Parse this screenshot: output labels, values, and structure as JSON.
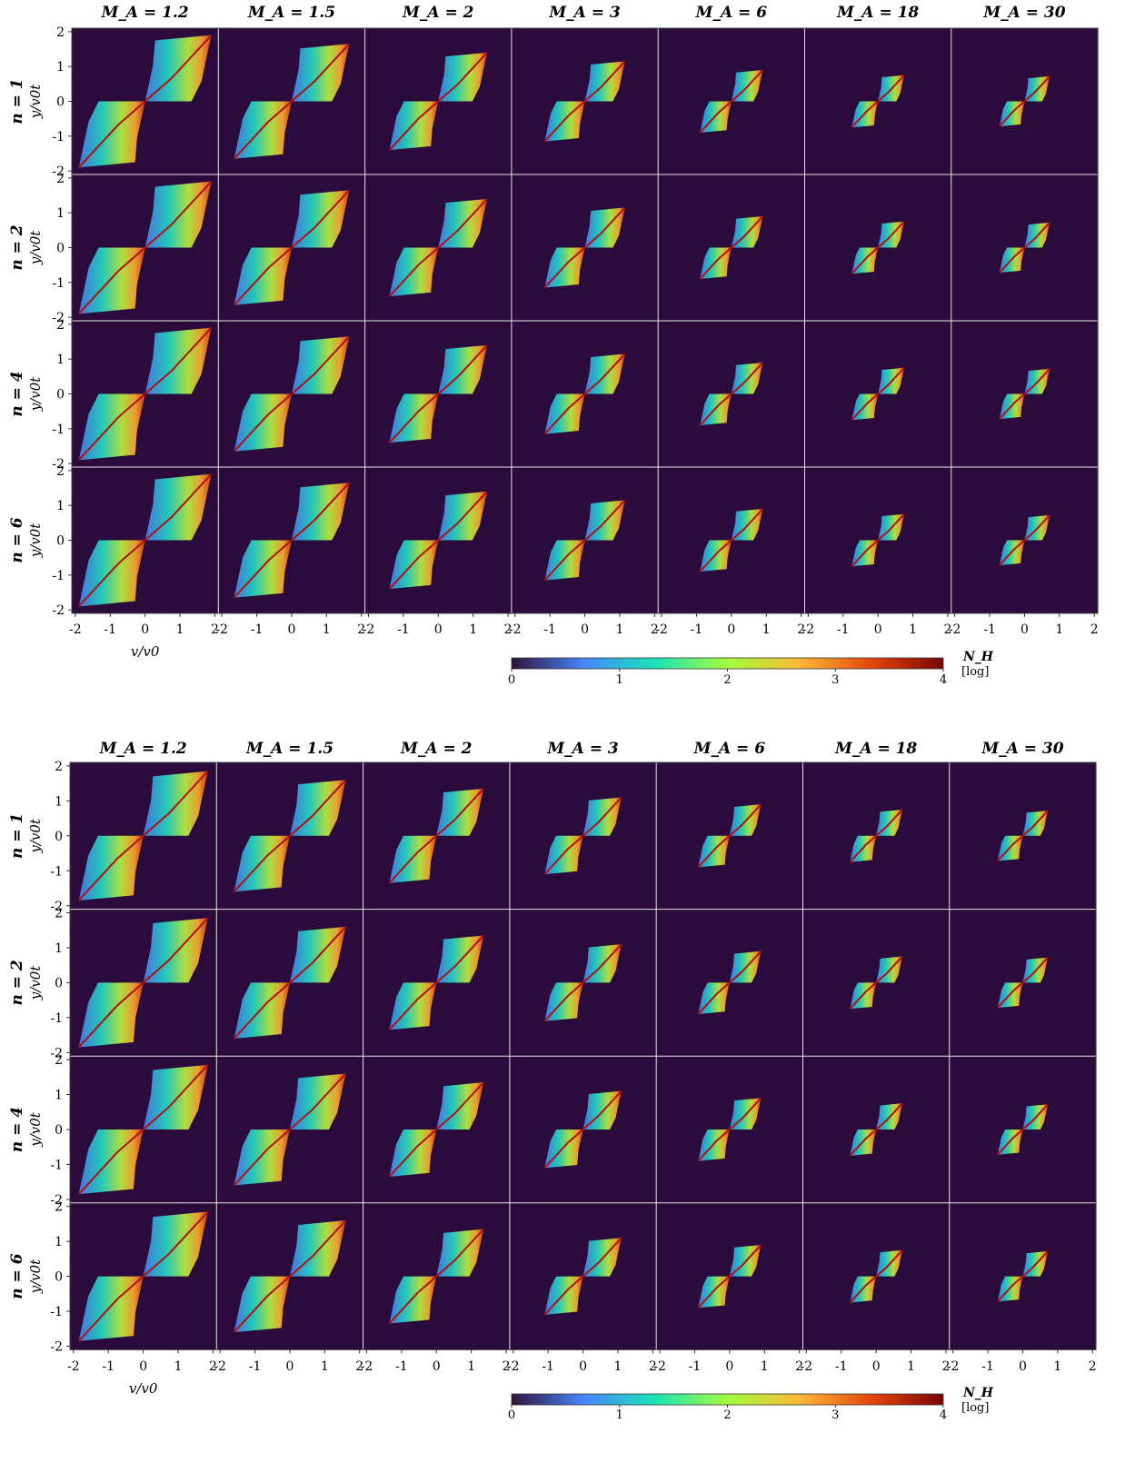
{
  "chart_data": [
    {
      "type": "heatmap",
      "column_titles": [
        "M_A = 1.2",
        "M_A = 1.5",
        "M_A = 2",
        "M_A = 3",
        "M_A = 6",
        "M_A = 18",
        "M_A = 30"
      ],
      "row_titles": [
        "n = 1",
        "n = 2",
        "n = 4",
        "n = 6"
      ],
      "ylabel": "y/v0t",
      "xlabel": "v/v0",
      "x_ticks": [
        "-2",
        "-1",
        "0",
        "1",
        "2"
      ],
      "y_ticks": [
        "2",
        "1",
        "0",
        "-1",
        "-2"
      ],
      "xlim": [
        -2.1,
        2.1
      ],
      "ylim": [
        -2.1,
        2.1
      ],
      "extent_by_column": [
        1.9,
        1.65,
        1.4,
        1.15,
        0.9,
        0.75,
        0.72
      ],
      "colorbar": {
        "label": "N_H",
        "unit": "[log]",
        "ticks": [
          "0",
          "1",
          "2",
          "3",
          "4"
        ],
        "range": [
          0,
          4
        ]
      }
    },
    {
      "type": "heatmap",
      "column_titles": [
        "M_A = 1.2",
        "M_A = 1.5",
        "M_A = 2",
        "M_A = 3",
        "M_A = 6",
        "M_A = 18",
        "M_A = 30"
      ],
      "row_titles": [
        "n = 1",
        "n = 2",
        "n = 4",
        "n = 6"
      ],
      "ylabel": "y/v0t",
      "xlabel": "v/v0",
      "x_ticks": [
        "-2",
        "-1",
        "0",
        "1",
        "2"
      ],
      "y_ticks": [
        "2",
        "1",
        "0",
        "-1",
        "-2"
      ],
      "xlim": [
        -2.1,
        2.1
      ],
      "ylim": [
        -2.1,
        2.1
      ],
      "extent_by_column": [
        1.85,
        1.6,
        1.35,
        1.1,
        0.9,
        0.75,
        0.72
      ],
      "colorbar": {
        "label": "N_H",
        "unit": "[log]",
        "ticks": [
          "0",
          "1",
          "2",
          "3",
          "4"
        ],
        "range": [
          0,
          4
        ]
      }
    }
  ],
  "colors": {
    "background": "#2a0b3b",
    "colormap": [
      "#30123b",
      "#4686fb",
      "#1ae4b6",
      "#a4fc3c",
      "#fbb938",
      "#e4460a",
      "#7a0403"
    ]
  }
}
